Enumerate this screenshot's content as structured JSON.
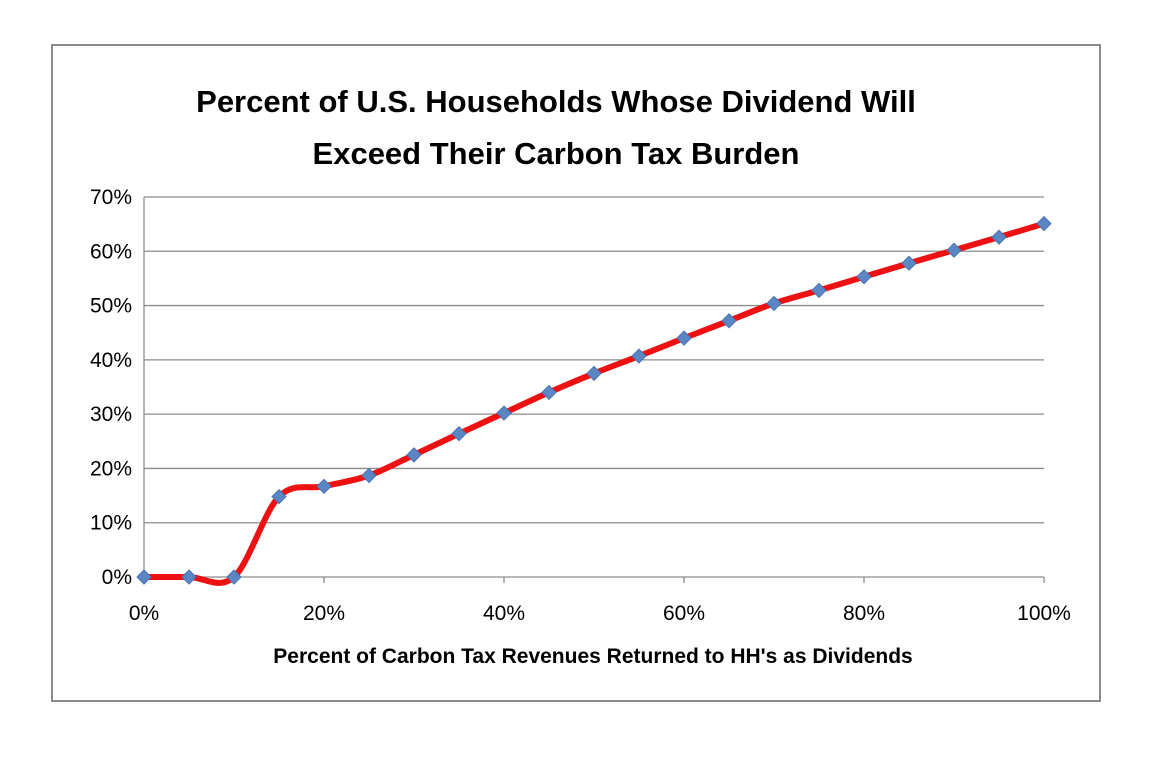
{
  "chart_data": {
    "type": "line",
    "title": "Percent of U.S. Households Whose Dividend Will Exceed Their Carbon Tax Burden",
    "title_lines": [
      "Percent of U.S. Households Whose Dividend Will",
      "Exceed Their Carbon Tax Burden"
    ],
    "xlabel": "Percent of Carbon Tax Revenues Returned to HH's as Dividends",
    "ylabel": "",
    "xlim": [
      0,
      100
    ],
    "ylim": [
      0,
      70
    ],
    "x_ticks": [
      0,
      20,
      40,
      60,
      80,
      100
    ],
    "x_tick_labels": [
      "0%",
      "20%",
      "40%",
      "60%",
      "80%",
      "100%"
    ],
    "y_ticks": [
      0,
      10,
      20,
      30,
      40,
      50,
      60,
      70
    ],
    "y_tick_labels": [
      "0%",
      "10%",
      "20%",
      "30%",
      "40%",
      "50%",
      "60%",
      "70%"
    ],
    "grid": true,
    "legend": "none",
    "series": [
      {
        "line_color": "#ee1111",
        "marker_color": "#5b86c4",
        "marker": "diamond",
        "smooth": true,
        "x": [
          0,
          5,
          10,
          15,
          20,
          25,
          30,
          35,
          40,
          45,
          50,
          55,
          60,
          65,
          70,
          75,
          80,
          85,
          90,
          95,
          100
        ],
        "values": [
          0,
          0,
          0,
          14.8,
          16.7,
          18.7,
          22.5,
          26.4,
          30.2,
          34.0,
          37.5,
          40.7,
          44.0,
          47.2,
          50.4,
          52.8,
          55.3,
          57.8,
          60.2,
          62.6,
          65.1
        ]
      }
    ]
  }
}
